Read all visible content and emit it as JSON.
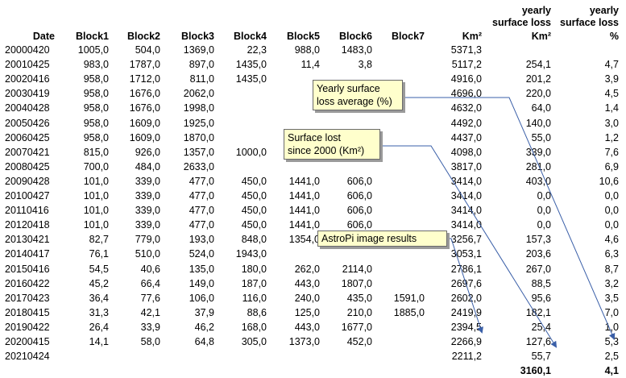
{
  "table": {
    "headers": {
      "date": "Date",
      "block1": "Block1",
      "block2": "Block2",
      "block3": "Block3",
      "block4": "Block4",
      "block5": "Block5",
      "block6": "Block6",
      "block7": "Block7",
      "km2": "Km²",
      "yearly_km2": [
        "yearly",
        "surface loss",
        "Km²"
      ],
      "yearly_pct": [
        "yearly",
        "surface loss",
        "%"
      ]
    },
    "rows": [
      [
        "20000420",
        "1005,0",
        "504,0",
        "1369,0",
        "22,3",
        "988,0",
        "1483,0",
        "",
        "5371,3",
        "",
        ""
      ],
      [
        "20010425",
        "983,0",
        "1787,0",
        "897,0",
        "1435,0",
        "11,4",
        "3,8",
        "",
        "5117,2",
        "254,1",
        "4,7"
      ],
      [
        "20020416",
        "958,0",
        "1712,0",
        "811,0",
        "1435,0",
        "",
        "",
        "",
        "4916,0",
        "201,2",
        "3,9"
      ],
      [
        "20030419",
        "958,0",
        "1676,0",
        "2062,0",
        "",
        "",
        "",
        "",
        "4696,0",
        "220,0",
        "4,5"
      ],
      [
        "20040428",
        "958,0",
        "1676,0",
        "1998,0",
        "",
        "",
        "",
        "",
        "4632,0",
        "64,0",
        "1,4"
      ],
      [
        "20050426",
        "958,0",
        "1609,0",
        "1925,0",
        "",
        "",
        "",
        "",
        "4492,0",
        "140,0",
        "3,0"
      ],
      [
        "20060425",
        "958,0",
        "1609,0",
        "1870,0",
        "",
        "",
        "",
        "",
        "4437,0",
        "55,0",
        "1,2"
      ],
      [
        "20070421",
        "815,0",
        "926,0",
        "1357,0",
        "1000,0",
        "",
        "",
        "",
        "4098,0",
        "339,0",
        "7,6"
      ],
      [
        "20080425",
        "700,0",
        "484,0",
        "2633,0",
        "",
        "",
        "",
        "",
        "3817,0",
        "281,0",
        "6,9"
      ],
      [
        "20090428",
        "101,0",
        "339,0",
        "477,0",
        "450,0",
        "1441,0",
        "606,0",
        "",
        "3414,0",
        "403,0",
        "10,6"
      ],
      [
        "20100427",
        "101,0",
        "339,0",
        "477,0",
        "450,0",
        "1441,0",
        "606,0",
        "",
        "3414,0",
        "0,0",
        "0,0"
      ],
      [
        "20110416",
        "101,0",
        "339,0",
        "477,0",
        "450,0",
        "1441,0",
        "606,0",
        "",
        "3414,0",
        "0,0",
        "0,0"
      ],
      [
        "20120418",
        "101,0",
        "339,0",
        "477,0",
        "450,0",
        "1441,0",
        "606,0",
        "",
        "3414,0",
        "0,0",
        "0,0"
      ],
      [
        "20130421",
        "82,7",
        "779,0",
        "193,0",
        "848,0",
        "1354,0",
        "",
        "",
        "3256,7",
        "157,3",
        "4,6"
      ],
      [
        "20140417",
        "76,1",
        "510,0",
        "524,0",
        "1943,0",
        "",
        "",
        "",
        "3053,1",
        "203,6",
        "6,3"
      ],
      [
        "20150416",
        "54,5",
        "40,6",
        "135,0",
        "180,0",
        "262,0",
        "2114,0",
        "",
        "2786,1",
        "267,0",
        "8,7"
      ],
      [
        "20160422",
        "45,2",
        "66,4",
        "149,0",
        "187,0",
        "443,0",
        "1807,0",
        "",
        "2697,6",
        "88,5",
        "3,2"
      ],
      [
        "20170423",
        "36,4",
        "77,6",
        "106,0",
        "116,0",
        "240,0",
        "435,0",
        "1591,0",
        "2602,0",
        "95,6",
        "3,5"
      ],
      [
        "20180415",
        "31,3",
        "42,1",
        "37,9",
        "88,6",
        "125,0",
        "210,0",
        "1885,0",
        "2419,9",
        "182,1",
        "7,0"
      ],
      [
        "20190422",
        "26,4",
        "33,9",
        "46,2",
        "168,0",
        "443,0",
        "1677,0",
        "",
        "2394,5",
        "25,4",
        "1,0"
      ],
      [
        "20200415",
        "14,1",
        "58,0",
        "64,8",
        "305,0",
        "1373,0",
        "452,0",
        "",
        "2266,9",
        "127,6",
        "5,3"
      ],
      [
        "20210424",
        "",
        "",
        "",
        "",
        "",
        "",
        "",
        "2211,2",
        "55,7",
        "2,5"
      ]
    ],
    "totals": {
      "km2": "3160,1",
      "pct": "4,1"
    }
  },
  "callouts": {
    "yearly_avg": [
      "Yearly surface",
      "loss average (%)"
    ],
    "surface_lost": [
      "Surface lost",
      "since 2000 (Km²)"
    ],
    "astropi": [
      "AstroPi image results"
    ]
  },
  "colors": {
    "callout_bg": "#ffffcc",
    "arrow": "#3a5fa8"
  }
}
